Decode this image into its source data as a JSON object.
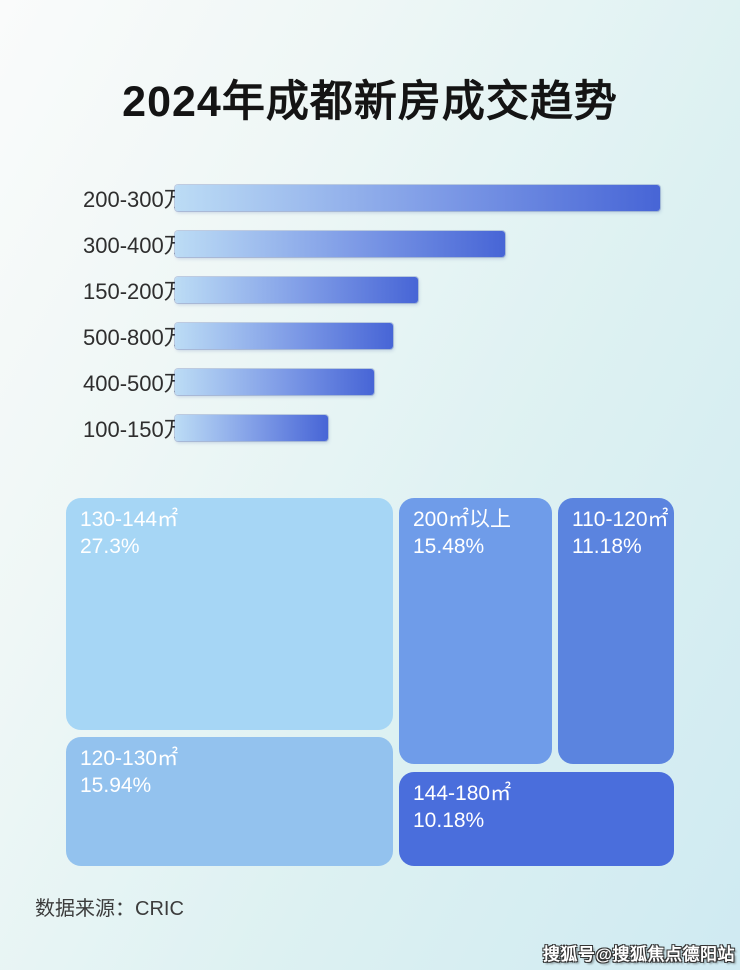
{
  "page": {
    "title": "2024年成都新房成交趋势",
    "source_label": "数据来源：CRIC",
    "watermark": "搜狐号@搜狐焦点德阳站"
  },
  "colors": {
    "bar_gradient_start": "#bcdcf5",
    "bar_gradient_end": "#4765d6",
    "tile_130_144": "#a6d6f5",
    "tile_120_130": "#93c2ee",
    "tile_200_plus": "#6f9ce9",
    "tile_110_120": "#5b84df",
    "tile_144_180": "#4a6edc",
    "background_top_left": "#fafbfb",
    "background_bottom_right": "#cfeaf2",
    "title_text": "#141414",
    "tile_text": "#ffffff"
  },
  "chart_data": [
    {
      "type": "bar",
      "orientation": "horizontal",
      "title": "2024年成都新房成交趋势",
      "categories": [
        "200-300万",
        "300-400万",
        "150-200万",
        "500-800万",
        "400-500万",
        "100-150万"
      ],
      "values": [
        100,
        68,
        50,
        45,
        41,
        31.5
      ],
      "value_unit": "relative length, % of longest bar (no numeric axis shown)",
      "grid": false,
      "legend": false
    },
    {
      "type": "treemap",
      "tiles": [
        {
          "label": "130-144㎡",
          "value": 27.3,
          "value_label": "27.3%"
        },
        {
          "label": "200㎡以上",
          "value": 15.48,
          "value_label": "15.48%"
        },
        {
          "label": "110-120㎡",
          "value": 11.18,
          "value_label": "11.18%"
        },
        {
          "label": "120-130㎡",
          "value": 15.94,
          "value_label": "15.94%"
        },
        {
          "label": "144-180㎡",
          "value": 10.18,
          "value_label": "10.18%"
        }
      ]
    }
  ]
}
